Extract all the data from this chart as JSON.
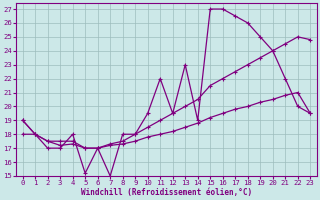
{
  "xlabel": "Windchill (Refroidissement éolien,°C)",
  "background_color": "#cce8e8",
  "line_color": "#800080",
  "grid_color": "#9dbdbd",
  "xlim": [
    -0.5,
    23.5
  ],
  "ylim": [
    15,
    27.4
  ],
  "xticks": [
    0,
    1,
    2,
    3,
    4,
    5,
    6,
    7,
    8,
    9,
    10,
    11,
    12,
    13,
    14,
    15,
    16,
    17,
    18,
    19,
    20,
    21,
    22,
    23
  ],
  "yticks": [
    15,
    16,
    17,
    18,
    19,
    20,
    21,
    22,
    23,
    24,
    25,
    26,
    27
  ],
  "line1_x": [
    0,
    1,
    2,
    3,
    4,
    5,
    6,
    7,
    8,
    9,
    10,
    11,
    12,
    13,
    14,
    15,
    16,
    17,
    18,
    19,
    20,
    21,
    22,
    23
  ],
  "line1_y": [
    19,
    18,
    17,
    17,
    18,
    15.2,
    17,
    15,
    18,
    18,
    19.5,
    22,
    19.5,
    23,
    19,
    27,
    27,
    26.5,
    26,
    25,
    24,
    22,
    20,
    19.5
  ],
  "line2_x": [
    0,
    1,
    2,
    3,
    4,
    5,
    6,
    7,
    8,
    9,
    10,
    11,
    12,
    13,
    14,
    15,
    16,
    17,
    18,
    19,
    20,
    21,
    22,
    23
  ],
  "line2_y": [
    19,
    18,
    17.5,
    17.5,
    17.5,
    17,
    17,
    17.3,
    17.5,
    18,
    18.5,
    19,
    19.5,
    20,
    20.5,
    21.5,
    22,
    22.5,
    23,
    23.5,
    24,
    24.5,
    25,
    24.8
  ],
  "line3_x": [
    0,
    1,
    2,
    3,
    4,
    5,
    6,
    7,
    8,
    9,
    10,
    11,
    12,
    13,
    14,
    15,
    16,
    17,
    18,
    19,
    20,
    21,
    22,
    23
  ],
  "line3_y": [
    18,
    18,
    17.5,
    17.2,
    17.3,
    17,
    17,
    17.2,
    17.3,
    17.5,
    17.8,
    18,
    18.2,
    18.5,
    18.8,
    19.2,
    19.5,
    19.8,
    20,
    20.3,
    20.5,
    20.8,
    21,
    19.5
  ]
}
